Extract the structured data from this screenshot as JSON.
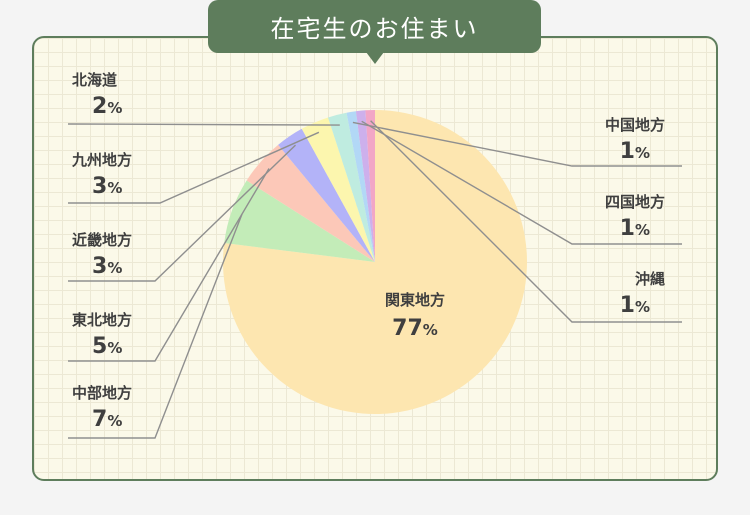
{
  "title": "在宅生のお住まい",
  "chart_data": {
    "type": "pie",
    "unit": "%",
    "slices": [
      {
        "name": "関東地方",
        "value": 77,
        "color": "#fde6b0"
      },
      {
        "name": "中部地方",
        "value": 7,
        "color": "#c3ecb8"
      },
      {
        "name": "東北地方",
        "value": 5,
        "color": "#fcc8b8"
      },
      {
        "name": "近畿地方",
        "value": 3,
        "color": "#b3b3f8"
      },
      {
        "name": "九州地方",
        "value": 3,
        "color": "#fcf6ae"
      },
      {
        "name": "北海道",
        "value": 2,
        "color": "#bfece0"
      },
      {
        "name": "中国地方",
        "value": 1,
        "color": "#b2d8f6"
      },
      {
        "name": "四国地方",
        "value": 1,
        "color": "#cdb0ec"
      },
      {
        "name": "沖縄",
        "value": 1,
        "color": "#f2a6c6"
      }
    ]
  }
}
